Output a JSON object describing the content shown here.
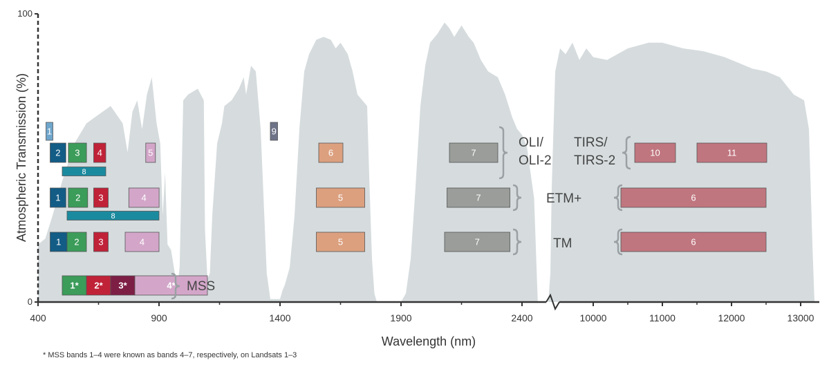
{
  "chart_data": {
    "type": "area",
    "title": "",
    "xlabel": "Wavelength (nm)",
    "ylabel": "Atmospheric Transmission (%)",
    "ylim": [
      0,
      100
    ],
    "y_tick_labels": [
      "100",
      "0"
    ],
    "x_tick_labels_left": [
      "400",
      "900",
      "1400",
      "1900",
      "2400"
    ],
    "x_tick_labels_right": [
      "10000",
      "11000",
      "12000",
      "13000"
    ],
    "x_axis_break_between": [
      2400,
      10000
    ],
    "colors": {
      "transmission": "#d6dcde",
      "axis": "#333333",
      "bracket": "#9aa0a3",
      "band_text": "#ffffff"
    },
    "transmission_left": [
      [
        400,
        20
      ],
      [
        430,
        22
      ],
      [
        460,
        30
      ],
      [
        500,
        42
      ],
      [
        550,
        55
      ],
      [
        600,
        62
      ],
      [
        650,
        65
      ],
      [
        700,
        68
      ],
      [
        750,
        62
      ],
      [
        770,
        52
      ],
      [
        790,
        66
      ],
      [
        810,
        70
      ],
      [
        830,
        60
      ],
      [
        850,
        72
      ],
      [
        870,
        78
      ],
      [
        890,
        62
      ],
      [
        905,
        55
      ],
      [
        915,
        30
      ],
      [
        925,
        45
      ],
      [
        935,
        20
      ],
      [
        950,
        18
      ],
      [
        965,
        10
      ],
      [
        975,
        5
      ],
      [
        985,
        12
      ],
      [
        1000,
        70
      ],
      [
        1020,
        72
      ],
      [
        1060,
        74
      ],
      [
        1085,
        70
      ],
      [
        1090,
        25
      ],
      [
        1100,
        8
      ],
      [
        1110,
        10
      ],
      [
        1120,
        30
      ],
      [
        1140,
        55
      ],
      [
        1160,
        62
      ],
      [
        1170,
        68
      ],
      [
        1200,
        70
      ],
      [
        1230,
        74
      ],
      [
        1250,
        78
      ],
      [
        1260,
        72
      ],
      [
        1280,
        82
      ],
      [
        1300,
        80
      ],
      [
        1320,
        60
      ],
      [
        1345,
        10
      ],
      [
        1360,
        1
      ],
      [
        1380,
        1
      ],
      [
        1400,
        1
      ],
      [
        1410,
        4
      ],
      [
        1420,
        6
      ],
      [
        1440,
        12
      ],
      [
        1460,
        30
      ],
      [
        1480,
        60
      ],
      [
        1500,
        80
      ],
      [
        1520,
        86
      ],
      [
        1550,
        91
      ],
      [
        1580,
        92
      ],
      [
        1610,
        91
      ],
      [
        1630,
        88
      ],
      [
        1650,
        90
      ],
      [
        1680,
        86
      ],
      [
        1700,
        80
      ],
      [
        1720,
        72
      ],
      [
        1740,
        70
      ],
      [
        1760,
        68
      ],
      [
        1770,
        40
      ],
      [
        1780,
        15
      ],
      [
        1790,
        3
      ],
      [
        1800,
        0
      ],
      [
        1900,
        0
      ],
      [
        1920,
        3
      ],
      [
        1940,
        15
      ],
      [
        1960,
        40
      ],
      [
        1980,
        68
      ],
      [
        2000,
        82
      ],
      [
        2020,
        90
      ],
      [
        2050,
        93
      ],
      [
        2080,
        97
      ],
      [
        2100,
        95
      ],
      [
        2120,
        92
      ],
      [
        2150,
        96
      ],
      [
        2180,
        92
      ],
      [
        2200,
        90
      ],
      [
        2230,
        84
      ],
      [
        2260,
        80
      ],
      [
        2300,
        78
      ],
      [
        2330,
        72
      ],
      [
        2360,
        64
      ],
      [
        2380,
        60
      ],
      [
        2400,
        58
      ],
      [
        2420,
        54
      ],
      [
        2450,
        36
      ],
      [
        2465,
        0
      ]
    ],
    "transmission_right": [
      [
        9350,
        0
      ],
      [
        9380,
        10
      ],
      [
        9400,
        40
      ],
      [
        9450,
        80
      ],
      [
        9520,
        88
      ],
      [
        9600,
        86
      ],
      [
        9700,
        90
      ],
      [
        9800,
        84
      ],
      [
        9900,
        88
      ],
      [
        10000,
        85
      ],
      [
        10200,
        84
      ],
      [
        10500,
        88
      ],
      [
        10800,
        90
      ],
      [
        11000,
        90
      ],
      [
        11300,
        88
      ],
      [
        11600,
        87
      ],
      [
        11900,
        85
      ],
      [
        12100,
        83
      ],
      [
        12300,
        81
      ],
      [
        12500,
        80
      ],
      [
        12700,
        78
      ],
      [
        12900,
        72
      ],
      [
        13050,
        70
      ],
      [
        13120,
        60
      ],
      [
        13170,
        20
      ],
      [
        13200,
        0
      ]
    ],
    "sensors": [
      {
        "name": "OLI/ TIRS",
        "label_lines_left": [
          "OLI/",
          "OLI-2"
        ],
        "label_lines_right": [
          "TIRS/",
          "TIRS-2"
        ]
      },
      {
        "name": "ETM+",
        "label": "ETM+"
      },
      {
        "name": "TM",
        "label": "TM"
      },
      {
        "name": "MSS",
        "label": "MSS"
      }
    ],
    "bands": [
      {
        "sensor": "OLI",
        "band": "1",
        "start": 433,
        "end": 453,
        "row": 0,
        "color": "#6fa6cc"
      },
      {
        "sensor": "OLI",
        "band": "9",
        "start": 1360,
        "end": 1390,
        "row": 0,
        "color": "#6e7388"
      },
      {
        "sensor": "OLI",
        "band": "2",
        "start": 450,
        "end": 515,
        "row": 1,
        "color": "#135c86"
      },
      {
        "sensor": "OLI",
        "band": "3",
        "start": 525,
        "end": 600,
        "row": 1,
        "color": "#3c9c5a"
      },
      {
        "sensor": "OLI",
        "band": "4",
        "start": 630,
        "end": 680,
        "row": 1,
        "color": "#c02238"
      },
      {
        "sensor": "OLI",
        "band": "5",
        "start": 845,
        "end": 885,
        "row": 1,
        "color": "#d3a6c9"
      },
      {
        "sensor": "OLI",
        "band": "6",
        "start": 1560,
        "end": 1660,
        "row": 1,
        "color": "#dca07f"
      },
      {
        "sensor": "OLI",
        "band": "7",
        "start": 2100,
        "end": 2300,
        "row": 1,
        "color": "#9a9d99"
      },
      {
        "sensor": "TIRS",
        "band": "10",
        "start": 10600,
        "end": 11190,
        "row": 1,
        "color": "#c0767f"
      },
      {
        "sensor": "TIRS",
        "band": "11",
        "start": 11500,
        "end": 12510,
        "row": 1,
        "color": "#c0767f"
      },
      {
        "sensor": "OLI",
        "band": "8",
        "start": 500,
        "end": 680,
        "row": 2,
        "color": "#1a8a9f"
      },
      {
        "sensor": "ETM+",
        "band": "1",
        "start": 450,
        "end": 515,
        "row": 3,
        "color": "#135c86"
      },
      {
        "sensor": "ETM+",
        "band": "2",
        "start": 525,
        "end": 605,
        "row": 3,
        "color": "#3c9c5a"
      },
      {
        "sensor": "ETM+",
        "band": "3",
        "start": 630,
        "end": 690,
        "row": 3,
        "color": "#c02238"
      },
      {
        "sensor": "ETM+",
        "band": "4",
        "start": 775,
        "end": 900,
        "row": 3,
        "color": "#d3a6c9"
      },
      {
        "sensor": "ETM+",
        "band": "5",
        "start": 1550,
        "end": 1750,
        "row": 3,
        "color": "#dca07f"
      },
      {
        "sensor": "ETM+",
        "band": "7",
        "start": 2090,
        "end": 2350,
        "row": 3,
        "color": "#9a9d99"
      },
      {
        "sensor": "ETM+",
        "band": "6",
        "start": 10400,
        "end": 12500,
        "row": 3,
        "color": "#c0767f"
      },
      {
        "sensor": "ETM+",
        "band": "8",
        "start": 520,
        "end": 900,
        "row": 4,
        "color": "#1a8a9f"
      },
      {
        "sensor": "TM",
        "band": "1",
        "start": 450,
        "end": 520,
        "row": 5,
        "color": "#135c86"
      },
      {
        "sensor": "TM",
        "band": "2",
        "start": 520,
        "end": 600,
        "row": 5,
        "color": "#3c9c5a"
      },
      {
        "sensor": "TM",
        "band": "3",
        "start": 630,
        "end": 690,
        "row": 5,
        "color": "#c02238"
      },
      {
        "sensor": "TM",
        "band": "4",
        "start": 760,
        "end": 900,
        "row": 5,
        "color": "#d3a6c9"
      },
      {
        "sensor": "TM",
        "band": "5",
        "start": 1550,
        "end": 1750,
        "row": 5,
        "color": "#dca07f"
      },
      {
        "sensor": "TM",
        "band": "7",
        "start": 2080,
        "end": 2350,
        "row": 5,
        "color": "#9a9d99"
      },
      {
        "sensor": "TM",
        "band": "6",
        "start": 10400,
        "end": 12500,
        "row": 5,
        "color": "#c0767f"
      },
      {
        "sensor": "MSS",
        "band": "1*",
        "start": 500,
        "end": 600,
        "row": 6,
        "color": "#3c9c5a"
      },
      {
        "sensor": "MSS",
        "band": "2*",
        "start": 600,
        "end": 700,
        "row": 6,
        "color": "#c02238"
      },
      {
        "sensor": "MSS",
        "band": "3*",
        "start": 700,
        "end": 800,
        "row": 6,
        "color": "#7d1e45"
      },
      {
        "sensor": "MSS",
        "band": "4*",
        "start": 800,
        "end": 1100,
        "row": 6,
        "color": "#d3a6c9"
      }
    ]
  },
  "footnote": "* MSS bands 1–4 were known as bands 4–7, respectively, on Landsats 1–3"
}
